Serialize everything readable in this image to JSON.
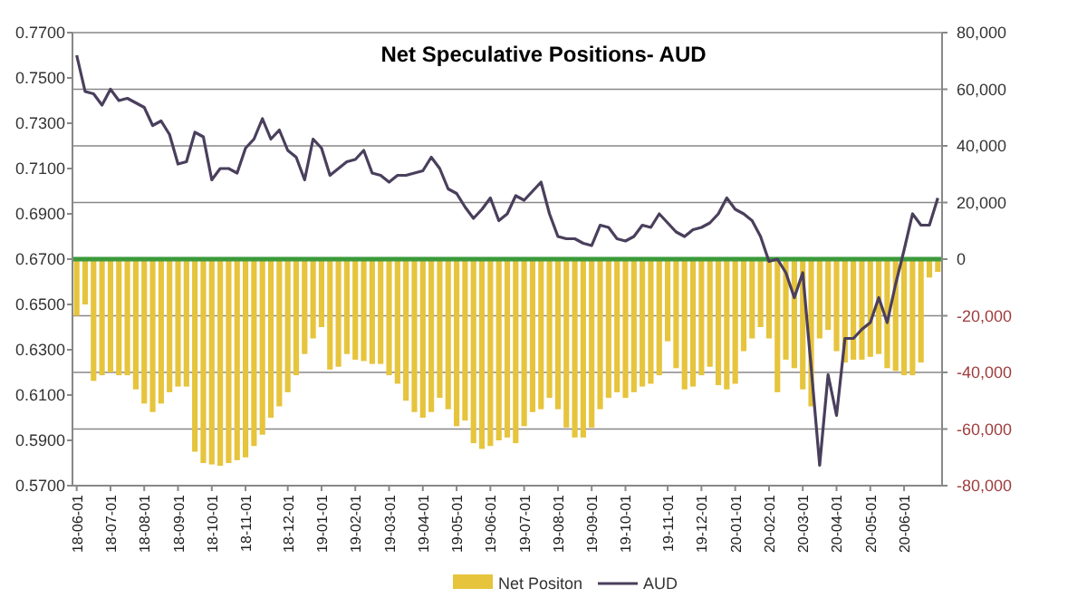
{
  "chart_data": {
    "type": "bar",
    "title": "Net Speculative Positions- AUD",
    "categories": [
      "18-06-01",
      null,
      null,
      null,
      "18-07-01",
      null,
      null,
      null,
      "18-08-01",
      null,
      null,
      null,
      "18-09-01",
      null,
      null,
      null,
      "18-10-01",
      null,
      null,
      null,
      "18-11-01",
      null,
      null,
      null,
      null,
      "18-12-01",
      null,
      null,
      null,
      "19-01-01",
      null,
      null,
      null,
      "19-02-01",
      null,
      null,
      null,
      "19-03-01",
      null,
      null,
      null,
      "19-04-01",
      null,
      null,
      null,
      "19-05-01",
      null,
      null,
      null,
      "19-06-01",
      null,
      null,
      null,
      "19-07-01",
      null,
      null,
      null,
      "19-08-01",
      null,
      null,
      null,
      "19-09-01",
      null,
      null,
      null,
      "19-10-01",
      null,
      null,
      null,
      null,
      "19-11-01",
      null,
      null,
      null,
      "19-12-01",
      null,
      null,
      null,
      "20-01-01",
      null,
      null,
      null,
      "20-02-01",
      null,
      null,
      null,
      "20-03-01",
      null,
      null,
      null,
      "20-04-01",
      null,
      null,
      null,
      "20-05-01",
      null,
      null,
      null,
      "20-06-01",
      null,
      null,
      null,
      null
    ],
    "series": [
      {
        "name": "Net Positon",
        "axis": "y2",
        "color": "#e6c43c",
        "values": [
          -20000,
          -16000,
          -43000,
          -41000,
          -40000,
          -41000,
          -41000,
          -46000,
          -51000,
          -54000,
          -51000,
          -47000,
          -45000,
          -45000,
          -68000,
          -72000,
          -72500,
          -73000,
          -72000,
          -71000,
          -70000,
          -66000,
          -62000,
          -56000,
          -52000,
          -47000,
          -41000,
          -33500,
          -28000,
          -24000,
          -39000,
          -38000,
          -33500,
          -35500,
          -36000,
          -37000,
          -37000,
          -41000,
          -44000,
          -50000,
          -54000,
          -56000,
          -54000,
          -49000,
          -53000,
          -59000,
          -57000,
          -65000,
          -67000,
          -66000,
          -64000,
          -63000,
          -65000,
          -59000,
          -54000,
          -53000,
          -49000,
          -53000,
          -59500,
          -63000,
          -63000,
          -59500,
          -53000,
          -49000,
          -47000,
          -49000,
          -47000,
          -45000,
          -44000,
          -41000,
          -29000,
          -38500,
          -46000,
          -45000,
          -41000,
          -38000,
          -44500,
          -46000,
          -44000,
          -32500,
          -28000,
          -24000,
          -28000,
          -47000,
          -35500,
          -38500,
          -46000,
          -52000,
          -28000,
          -25000,
          -32500,
          -36500,
          -35500,
          -35500,
          -34500,
          -33500,
          -38500,
          -39500,
          -41000,
          -41000,
          -36500,
          -6500,
          -4500
        ]
      },
      {
        "name": "AUD",
        "type": "line",
        "color": "#4a3f5c",
        "values": [
          0.76,
          0.744,
          0.743,
          0.738,
          0.745,
          0.74,
          0.741,
          0.739,
          0.737,
          0.729,
          0.731,
          0.725,
          0.712,
          0.713,
          0.726,
          0.724,
          0.705,
          0.71,
          0.71,
          0.708,
          0.719,
          0.723,
          0.732,
          0.723,
          0.727,
          0.718,
          0.715,
          0.705,
          0.723,
          0.719,
          0.707,
          0.71,
          0.713,
          0.714,
          0.718,
          0.708,
          0.707,
          0.704,
          0.707,
          0.707,
          0.708,
          0.709,
          0.715,
          0.71,
          0.701,
          0.699,
          0.693,
          0.688,
          0.692,
          0.697,
          0.687,
          0.69,
          0.698,
          0.696,
          0.7,
          0.704,
          0.69,
          0.68,
          0.679,
          0.679,
          0.677,
          0.676,
          0.685,
          0.684,
          0.679,
          0.678,
          0.68,
          0.685,
          0.684,
          0.69,
          0.686,
          0.682,
          0.68,
          0.683,
          0.684,
          0.686,
          0.69,
          0.697,
          0.692,
          0.69,
          0.687,
          0.68,
          0.669,
          0.67,
          0.664,
          0.653,
          0.664,
          0.622,
          0.579,
          0.619,
          0.601,
          0.635,
          0.635,
          0.639,
          0.642,
          0.653,
          0.642,
          0.659,
          0.674,
          0.69,
          0.685,
          0.685,
          0.697
        ]
      }
    ],
    "ylim": [
      0.57,
      0.77
    ],
    "yticks": [
      {
        "value": 0.57,
        "label": "0.5700"
      },
      {
        "value": 0.59,
        "label": "0.5900"
      },
      {
        "value": 0.61,
        "label": "0.6100"
      },
      {
        "value": 0.63,
        "label": "0.6300"
      },
      {
        "value": 0.65,
        "label": "0.6500"
      },
      {
        "value": 0.67,
        "label": "0.6700"
      },
      {
        "value": 0.69,
        "label": "0.6900"
      },
      {
        "value": 0.71,
        "label": "0.7100"
      },
      {
        "value": 0.73,
        "label": "0.7300"
      },
      {
        "value": 0.75,
        "label": "0.7500"
      },
      {
        "value": 0.77,
        "label": "0.7700"
      }
    ],
    "y2lim": [
      -80000,
      80000
    ],
    "y2ticks": [
      {
        "value": -80000,
        "label": "-80,000"
      },
      {
        "value": -60000,
        "label": "-60,000"
      },
      {
        "value": -40000,
        "label": "-40,000"
      },
      {
        "value": -20000,
        "label": "-20,000"
      },
      0,
      {
        "value": 20000,
        "label": "20,000"
      },
      {
        "value": 40000,
        "label": "40,000"
      },
      {
        "value": 60000,
        "label": "60,000"
      },
      {
        "value": 80000,
        "label": "80,000"
      }
    ],
    "ref_lines": [
      {
        "axis": "y2",
        "value": 0,
        "color": "#3c9a3c"
      }
    ],
    "grid": true,
    "legend": "bottom"
  }
}
